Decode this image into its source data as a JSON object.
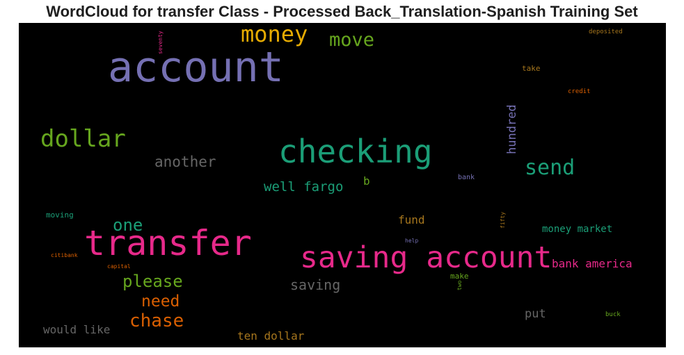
{
  "title": "WordCloud for transfer Class - Processed Back_Translation-Spanish Training Set",
  "cloud": {
    "background": "#000000",
    "words": [
      {
        "text": "account",
        "color": "#7570b3"
      },
      {
        "text": "checking",
        "color": "#1b9e77"
      },
      {
        "text": "transfer",
        "color": "#e7298a"
      },
      {
        "text": "saving account",
        "color": "#e7298a"
      },
      {
        "text": "money",
        "color": "#e6ab02"
      },
      {
        "text": "dollar",
        "color": "#66a61e"
      },
      {
        "text": "move",
        "color": "#66a61e"
      },
      {
        "text": "send",
        "color": "#1b9e77"
      },
      {
        "text": "another",
        "color": "#666666"
      },
      {
        "text": "well fargo",
        "color": "#1b9e77"
      },
      {
        "text": "one",
        "color": "#1b9e77"
      },
      {
        "text": "please",
        "color": "#66a61e"
      },
      {
        "text": "need",
        "color": "#d95f02"
      },
      {
        "text": "chase",
        "color": "#d95f02"
      },
      {
        "text": "saving",
        "color": "#666666"
      },
      {
        "text": "hundred",
        "color": "#7570b3"
      },
      {
        "text": "bank america",
        "color": "#e7298a"
      },
      {
        "text": "money market",
        "color": "#1b9e77"
      },
      {
        "text": "fund",
        "color": "#a6761d"
      },
      {
        "text": "put",
        "color": "#666666"
      },
      {
        "text": "would like",
        "color": "#666666"
      },
      {
        "text": "ten dollar",
        "color": "#a6761d"
      },
      {
        "text": "b",
        "color": "#66a61e"
      },
      {
        "text": "take",
        "color": "#a6761d"
      },
      {
        "text": "credit",
        "color": "#d95f02"
      },
      {
        "text": "deposited",
        "color": "#a6761d"
      },
      {
        "text": "seventy",
        "color": "#e7298a"
      },
      {
        "text": "bank",
        "color": "#7570b3"
      },
      {
        "text": "moving",
        "color": "#1b9e77"
      },
      {
        "text": "citibank",
        "color": "#d95f02"
      },
      {
        "text": "capital",
        "color": "#d95f02"
      },
      {
        "text": "help",
        "color": "#7570b3"
      },
      {
        "text": "make",
        "color": "#66a61e"
      },
      {
        "text": "two",
        "color": "#66a61e"
      },
      {
        "text": "fifty",
        "color": "#a6761d"
      },
      {
        "text": "buck",
        "color": "#66a61e"
      }
    ]
  }
}
